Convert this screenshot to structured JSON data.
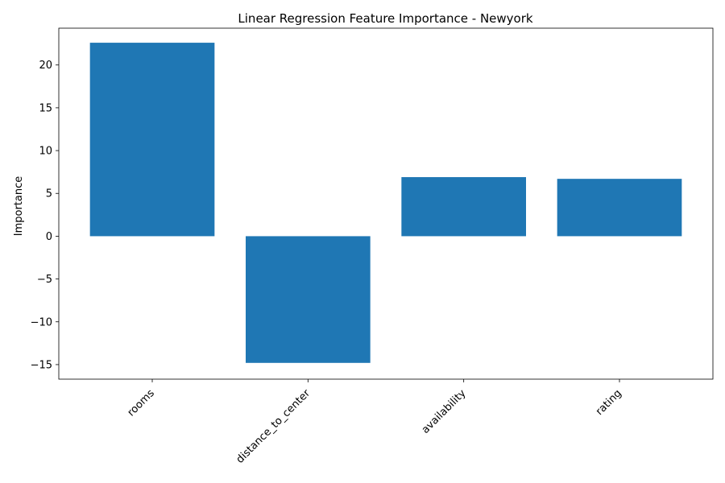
{
  "chart_data": {
    "type": "bar",
    "title": "Linear Regression Feature Importance - Newyork",
    "xlabel": "",
    "ylabel": "Importance",
    "categories": [
      "rooms",
      "distance_to_center",
      "availability",
      "rating"
    ],
    "values": [
      22.6,
      -14.8,
      6.9,
      6.7
    ],
    "ylim": [
      -16.7,
      24.3
    ],
    "yticks": [
      -15,
      -10,
      -5,
      0,
      5,
      10,
      15,
      20
    ],
    "grid": false,
    "bar_color": "#1f77b4"
  }
}
